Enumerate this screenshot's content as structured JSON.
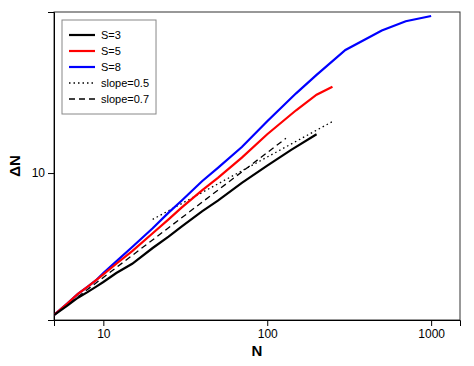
{
  "chart_data": {
    "type": "line",
    "xlabel": "N",
    "ylabel": "ΔN",
    "log": true,
    "xlim": [
      5,
      1500
    ],
    "ylim": [
      1.5,
      80
    ],
    "xticks": [
      10,
      100,
      1000
    ],
    "yticks": [
      10
    ],
    "grid": false,
    "legend": "upper left",
    "series": [
      {
        "name": "S=3",
        "color": "black",
        "line_style": "solid",
        "x": [
          5,
          6,
          7,
          8,
          9,
          10,
          12,
          15,
          20,
          25,
          30,
          40,
          50,
          70,
          100,
          140,
          200
        ],
        "values": [
          1.6,
          1.8,
          2.0,
          2.15,
          2.3,
          2.45,
          2.75,
          3.1,
          3.8,
          4.4,
          5.0,
          6.1,
          7.0,
          8.8,
          11.0,
          13.5,
          16.5
        ]
      },
      {
        "name": "S=5",
        "color": "red",
        "line_style": "solid",
        "x": [
          5,
          6,
          7,
          8,
          9,
          10,
          12,
          15,
          20,
          25,
          30,
          40,
          50,
          70,
          100,
          150,
          200,
          250
        ],
        "values": [
          1.6,
          1.85,
          2.1,
          2.3,
          2.5,
          2.7,
          3.1,
          3.65,
          4.6,
          5.5,
          6.4,
          8.0,
          9.4,
          12.2,
          16.5,
          22.5,
          27.5,
          30.5
        ]
      },
      {
        "name": "S=8",
        "color": "blue",
        "line_style": "solid",
        "x": [
          5,
          6,
          7,
          8,
          9,
          10,
          12,
          15,
          20,
          25,
          30,
          40,
          50,
          70,
          100,
          150,
          200,
          300,
          500,
          700,
          1000
        ],
        "values": [
          1.6,
          1.85,
          2.1,
          2.3,
          2.5,
          2.75,
          3.2,
          3.85,
          4.9,
          6.0,
          7.0,
          9.0,
          10.7,
          14.0,
          19.5,
          28.0,
          35.5,
          49.0,
          63.0,
          71.0,
          76.0
        ]
      },
      {
        "name": "slope=0.5",
        "color": "black",
        "line_style": "dotted",
        "x": [
          20,
          250
        ],
        "values": [
          5.5,
          19.4454
        ]
      },
      {
        "name": "slope=0.7",
        "color": "black",
        "line_style": "dashed",
        "x": [
          5,
          130
        ],
        "values": [
          1.6,
          15.6531
        ]
      }
    ]
  }
}
